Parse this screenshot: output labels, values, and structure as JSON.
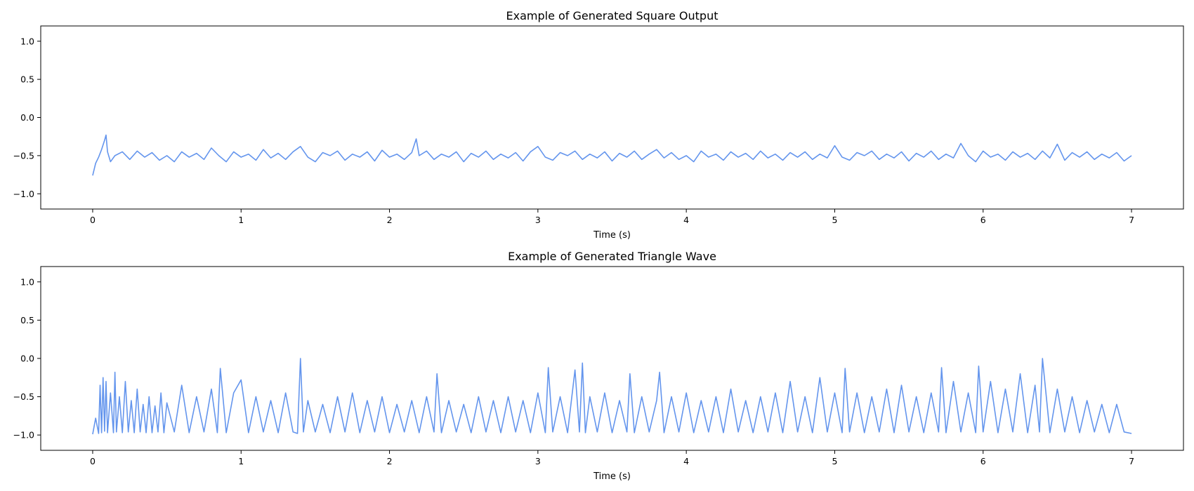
{
  "chart_data": [
    {
      "type": "line",
      "title": "Example of Generated Square Output",
      "xlabel": "Time (s)",
      "ylabel": "",
      "xlim": [
        -0.35,
        7.35
      ],
      "ylim": [
        -1.2,
        1.2
      ],
      "xticks": [
        0,
        1,
        2,
        3,
        4,
        5,
        6,
        7
      ],
      "yticks": [
        1.0,
        0.5,
        0.0,
        -0.5,
        -1.0
      ],
      "xtick_labels": [
        "0",
        "1",
        "2",
        "3",
        "4",
        "5",
        "6",
        "7"
      ],
      "ytick_labels": [
        "1.0",
        "0.5",
        "0.0",
        "−0.5",
        "−1.0"
      ],
      "grid": false,
      "color": "#6495ED",
      "series": [
        {
          "x": [
            0,
            0.02,
            0.04,
            0.06,
            0.08,
            0.09,
            0.1,
            0.12,
            0.15,
            0.2,
            0.25,
            0.3,
            0.35,
            0.4,
            0.45,
            0.5,
            0.55,
            0.6,
            0.65,
            0.7,
            0.75,
            0.8,
            0.85,
            0.9,
            0.95,
            1.0,
            1.05,
            1.1,
            1.15,
            1.2,
            1.25,
            1.3,
            1.35,
            1.4,
            1.45,
            1.5,
            1.55,
            1.6,
            1.65,
            1.7,
            1.75,
            1.8,
            1.85,
            1.9,
            1.95,
            2.0,
            2.05,
            2.1,
            2.15,
            2.18,
            2.2,
            2.25,
            2.3,
            2.35,
            2.4,
            2.45,
            2.5,
            2.55,
            2.6,
            2.65,
            2.7,
            2.75,
            2.8,
            2.85,
            2.9,
            2.95,
            3.0,
            3.05,
            3.1,
            3.15,
            3.2,
            3.25,
            3.3,
            3.35,
            3.4,
            3.45,
            3.5,
            3.55,
            3.6,
            3.65,
            3.7,
            3.75,
            3.8,
            3.85,
            3.9,
            3.95,
            4.0,
            4.05,
            4.1,
            4.15,
            4.2,
            4.25,
            4.3,
            4.35,
            4.4,
            4.45,
            4.5,
            4.55,
            4.6,
            4.65,
            4.7,
            4.75,
            4.8,
            4.85,
            4.9,
            4.95,
            5.0,
            5.05,
            5.1,
            5.15,
            5.2,
            5.25,
            5.3,
            5.35,
            5.4,
            5.45,
            5.5,
            5.55,
            5.6,
            5.65,
            5.7,
            5.75,
            5.8,
            5.85,
            5.9,
            5.95,
            6.0,
            6.05,
            6.1,
            6.15,
            6.2,
            6.25,
            6.3,
            6.35,
            6.4,
            6.45,
            6.5,
            6.55,
            6.6,
            6.65,
            6.7,
            6.75,
            6.8,
            6.85,
            6.9,
            6.95,
            7.0
          ],
          "y": [
            -0.76,
            -0.6,
            -0.52,
            -0.42,
            -0.3,
            -0.23,
            -0.45,
            -0.58,
            -0.5,
            -0.45,
            -0.55,
            -0.44,
            -0.52,
            -0.46,
            -0.56,
            -0.5,
            -0.58,
            -0.45,
            -0.52,
            -0.47,
            -0.55,
            -0.4,
            -0.5,
            -0.58,
            -0.45,
            -0.52,
            -0.48,
            -0.56,
            -0.42,
            -0.53,
            -0.47,
            -0.55,
            -0.45,
            -0.38,
            -0.52,
            -0.58,
            -0.46,
            -0.5,
            -0.44,
            -0.56,
            -0.48,
            -0.52,
            -0.45,
            -0.57,
            -0.43,
            -0.52,
            -0.48,
            -0.55,
            -0.46,
            -0.28,
            -0.5,
            -0.44,
            -0.55,
            -0.48,
            -0.52,
            -0.45,
            -0.58,
            -0.47,
            -0.52,
            -0.44,
            -0.55,
            -0.48,
            -0.53,
            -0.46,
            -0.57,
            -0.45,
            -0.38,
            -0.52,
            -0.56,
            -0.46,
            -0.5,
            -0.44,
            -0.55,
            -0.48,
            -0.53,
            -0.45,
            -0.57,
            -0.47,
            -0.52,
            -0.44,
            -0.55,
            -0.48,
            -0.42,
            -0.53,
            -0.46,
            -0.55,
            -0.5,
            -0.58,
            -0.44,
            -0.52,
            -0.48,
            -0.56,
            -0.45,
            -0.52,
            -0.47,
            -0.55,
            -0.44,
            -0.53,
            -0.48,
            -0.56,
            -0.46,
            -0.52,
            -0.45,
            -0.55,
            -0.48,
            -0.53,
            -0.37,
            -0.52,
            -0.56,
            -0.46,
            -0.5,
            -0.44,
            -0.55,
            -0.48,
            -0.53,
            -0.45,
            -0.57,
            -0.47,
            -0.52,
            -0.44,
            -0.55,
            -0.48,
            -0.53,
            -0.34,
            -0.5,
            -0.58,
            -0.44,
            -0.52,
            -0.48,
            -0.56,
            -0.45,
            -0.52,
            -0.47,
            -0.55,
            -0.44,
            -0.53,
            -0.35,
            -0.56,
            -0.46,
            -0.52,
            -0.45,
            -0.55,
            -0.48,
            -0.53,
            -0.46,
            -0.57,
            -0.5
          ]
        }
      ]
    },
    {
      "type": "line",
      "title": "Example of Generated Triangle Wave",
      "xlabel": "Time (s)",
      "ylabel": "",
      "xlim": [
        -0.35,
        7.35
      ],
      "ylim": [
        -1.2,
        1.2
      ],
      "xticks": [
        0,
        1,
        2,
        3,
        4,
        5,
        6,
        7
      ],
      "yticks": [
        1.0,
        0.5,
        0.0,
        -0.5,
        -1.0
      ],
      "xtick_labels": [
        "0",
        "1",
        "2",
        "3",
        "4",
        "5",
        "6",
        "7"
      ],
      "ytick_labels": [
        "1.0",
        "0.5",
        "0.0",
        "−0.5",
        "−1.0"
      ],
      "grid": false,
      "color": "#6495ED",
      "series": [
        {
          "x": [
            0,
            0.02,
            0.04,
            0.05,
            0.06,
            0.07,
            0.08,
            0.09,
            0.1,
            0.12,
            0.14,
            0.15,
            0.16,
            0.18,
            0.2,
            0.22,
            0.24,
            0.26,
            0.28,
            0.3,
            0.32,
            0.34,
            0.36,
            0.38,
            0.4,
            0.42,
            0.44,
            0.46,
            0.48,
            0.5,
            0.55,
            0.6,
            0.65,
            0.7,
            0.75,
            0.8,
            0.84,
            0.86,
            0.9,
            0.95,
            1.0,
            1.05,
            1.1,
            1.15,
            1.2,
            1.25,
            1.3,
            1.35,
            1.38,
            1.4,
            1.42,
            1.45,
            1.5,
            1.55,
            1.6,
            1.65,
            1.7,
            1.75,
            1.8,
            1.85,
            1.9,
            1.95,
            2.0,
            2.05,
            2.1,
            2.15,
            2.2,
            2.25,
            2.3,
            2.32,
            2.35,
            2.4,
            2.45,
            2.5,
            2.55,
            2.6,
            2.65,
            2.7,
            2.75,
            2.8,
            2.85,
            2.9,
            2.95,
            3.0,
            3.05,
            3.07,
            3.1,
            3.15,
            3.2,
            3.25,
            3.28,
            3.3,
            3.32,
            3.35,
            3.4,
            3.45,
            3.5,
            3.55,
            3.6,
            3.62,
            3.65,
            3.7,
            3.75,
            3.8,
            3.82,
            3.85,
            3.9,
            3.95,
            4.0,
            4.05,
            4.1,
            4.15,
            4.2,
            4.25,
            4.3,
            4.35,
            4.4,
            4.45,
            4.5,
            4.55,
            4.6,
            4.65,
            4.7,
            4.75,
            4.8,
            4.85,
            4.9,
            4.95,
            5.0,
            5.05,
            5.07,
            5.1,
            5.15,
            5.2,
            5.25,
            5.3,
            5.35,
            5.4,
            5.45,
            5.5,
            5.55,
            5.6,
            5.65,
            5.7,
            5.72,
            5.75,
            5.8,
            5.85,
            5.9,
            5.95,
            5.97,
            6.0,
            6.05,
            6.1,
            6.15,
            6.2,
            6.25,
            6.3,
            6.35,
            6.38,
            6.4,
            6.45,
            6.5,
            6.55,
            6.6,
            6.65,
            6.7,
            6.75,
            6.8,
            6.85,
            6.9,
            6.95,
            7.0
          ],
          "y": [
            -0.99,
            -0.78,
            -0.98,
            -0.35,
            -0.97,
            -0.25,
            -0.95,
            -0.3,
            -0.97,
            -0.45,
            -0.97,
            -0.18,
            -0.96,
            -0.5,
            -0.97,
            -0.3,
            -0.96,
            -0.55,
            -0.97,
            -0.4,
            -0.96,
            -0.6,
            -0.97,
            -0.5,
            -0.97,
            -0.62,
            -0.96,
            -0.45,
            -0.97,
            -0.58,
            -0.96,
            -0.35,
            -0.97,
            -0.5,
            -0.96,
            -0.4,
            -0.97,
            -0.13,
            -0.97,
            -0.45,
            -0.28,
            -0.97,
            -0.5,
            -0.96,
            -0.55,
            -0.97,
            -0.45,
            -0.96,
            -0.98,
            0.0,
            -0.96,
            -0.55,
            -0.96,
            -0.6,
            -0.97,
            -0.5,
            -0.96,
            -0.45,
            -0.97,
            -0.55,
            -0.96,
            -0.5,
            -0.97,
            -0.6,
            -0.96,
            -0.55,
            -0.97,
            -0.5,
            -0.96,
            -0.2,
            -0.97,
            -0.55,
            -0.96,
            -0.6,
            -0.97,
            -0.5,
            -0.96,
            -0.55,
            -0.97,
            -0.5,
            -0.96,
            -0.55,
            -0.97,
            -0.45,
            -0.97,
            -0.12,
            -0.96,
            -0.5,
            -0.97,
            -0.15,
            -0.96,
            -0.06,
            -0.97,
            -0.5,
            -0.96,
            -0.45,
            -0.97,
            -0.55,
            -0.96,
            -0.2,
            -0.97,
            -0.5,
            -0.96,
            -0.55,
            -0.18,
            -0.97,
            -0.5,
            -0.96,
            -0.45,
            -0.97,
            -0.55,
            -0.96,
            -0.5,
            -0.97,
            -0.4,
            -0.96,
            -0.55,
            -0.97,
            -0.5,
            -0.96,
            -0.45,
            -0.97,
            -0.3,
            -0.96,
            -0.5,
            -0.97,
            -0.25,
            -0.96,
            -0.45,
            -0.97,
            -0.13,
            -0.96,
            -0.45,
            -0.97,
            -0.5,
            -0.96,
            -0.4,
            -0.97,
            -0.35,
            -0.96,
            -0.5,
            -0.97,
            -0.45,
            -0.96,
            -0.12,
            -0.97,
            -0.3,
            -0.96,
            -0.45,
            -0.97,
            -0.1,
            -0.96,
            -0.3,
            -0.97,
            -0.4,
            -0.96,
            -0.2,
            -0.97,
            -0.35,
            -0.96,
            0.0,
            -0.97,
            -0.4,
            -0.96,
            -0.5,
            -0.97,
            -0.55,
            -0.96,
            -0.6,
            -0.97,
            -0.6,
            -0.96,
            -0.98
          ]
        }
      ]
    }
  ]
}
